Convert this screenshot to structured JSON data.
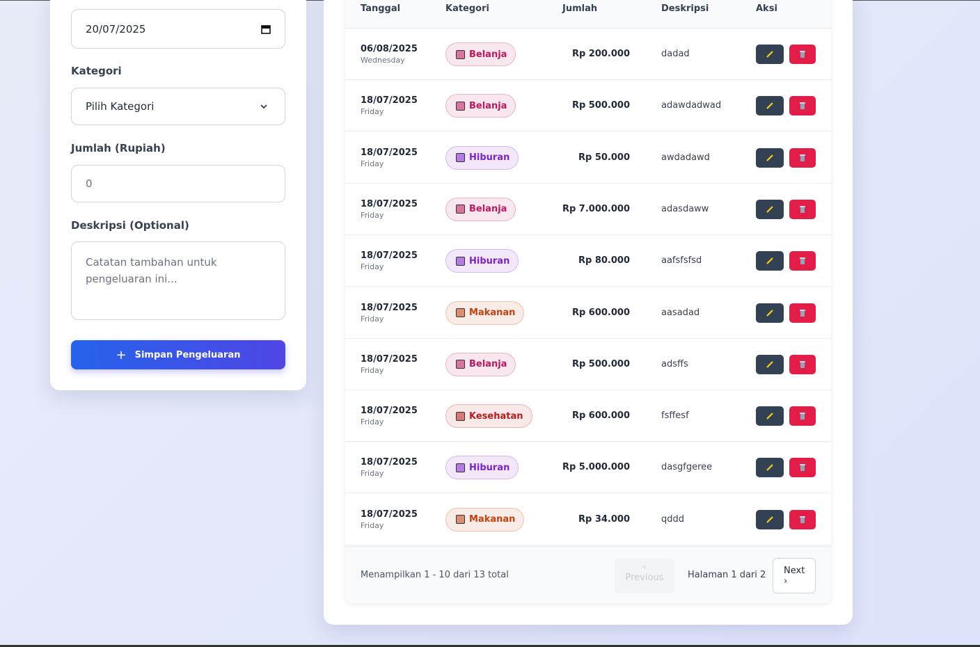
{
  "form": {
    "date_value": "20/07/2025",
    "category_label": "Kategori",
    "category_placeholder": "Pilih Kategori",
    "amount_label": "Jumlah (Rupiah)",
    "amount_placeholder": "0",
    "description_label": "Deskripsi (Optional)",
    "description_placeholder": "Catatan tambahan untuk pengeluaran ini...",
    "submit_button": "Simpan Pengeluaran"
  },
  "table": {
    "headers": [
      "Tanggal",
      "Kategori",
      "Jumlah",
      "Deskripsi",
      "Aksi"
    ],
    "rows": [
      {
        "date": "06/08/2025",
        "day": "Wednesday",
        "category": "Belanja",
        "badge_color": "#be185d",
        "amount": "Rp 200.000",
        "description": "dadad"
      },
      {
        "date": "18/07/2025",
        "day": "Friday",
        "category": "Belanja",
        "badge_color": "#be185d",
        "amount": "Rp 500.000",
        "description": "adawdadwad"
      },
      {
        "date": "18/07/2025",
        "day": "Friday",
        "category": "Hiburan",
        "badge_color": "#7e22ce",
        "amount": "Rp 50.000",
        "description": "awdadawd"
      },
      {
        "date": "18/07/2025",
        "day": "Friday",
        "category": "Belanja",
        "badge_color": "#be185d",
        "amount": "Rp 7.000.000",
        "description": "adasdaww"
      },
      {
        "date": "18/07/2025",
        "day": "Friday",
        "category": "Hiburan",
        "badge_color": "#7e22ce",
        "amount": "Rp 80.000",
        "description": "aafsfsfsd"
      },
      {
        "date": "18/07/2025",
        "day": "Friday",
        "category": "Makanan",
        "badge_color": "#c2410c",
        "amount": "Rp 600.000",
        "description": "aasadad"
      },
      {
        "date": "18/07/2025",
        "day": "Friday",
        "category": "Belanja",
        "badge_color": "#be185d",
        "amount": "Rp 500.000",
        "description": "adsffs"
      },
      {
        "date": "18/07/2025",
        "day": "Friday",
        "category": "Kesehatan",
        "badge_color": "#b91c1c",
        "amount": "Rp 600.000",
        "description": "fsffesf"
      },
      {
        "date": "18/07/2025",
        "day": "Friday",
        "category": "Hiburan",
        "badge_color": "#7e22ce",
        "amount": "Rp 5.000.000",
        "description": "dasgfgeree"
      },
      {
        "date": "18/07/2025",
        "day": "Friday",
        "category": "Makanan",
        "badge_color": "#c2410c",
        "amount": "Rp 34.000",
        "description": "qddd"
      }
    ]
  },
  "pagination": {
    "summary": "Menampilkan 1 - 10 dari 13 total",
    "previous": "Previous",
    "page_info": "Halaman 1 dari 2",
    "next": "Next"
  }
}
